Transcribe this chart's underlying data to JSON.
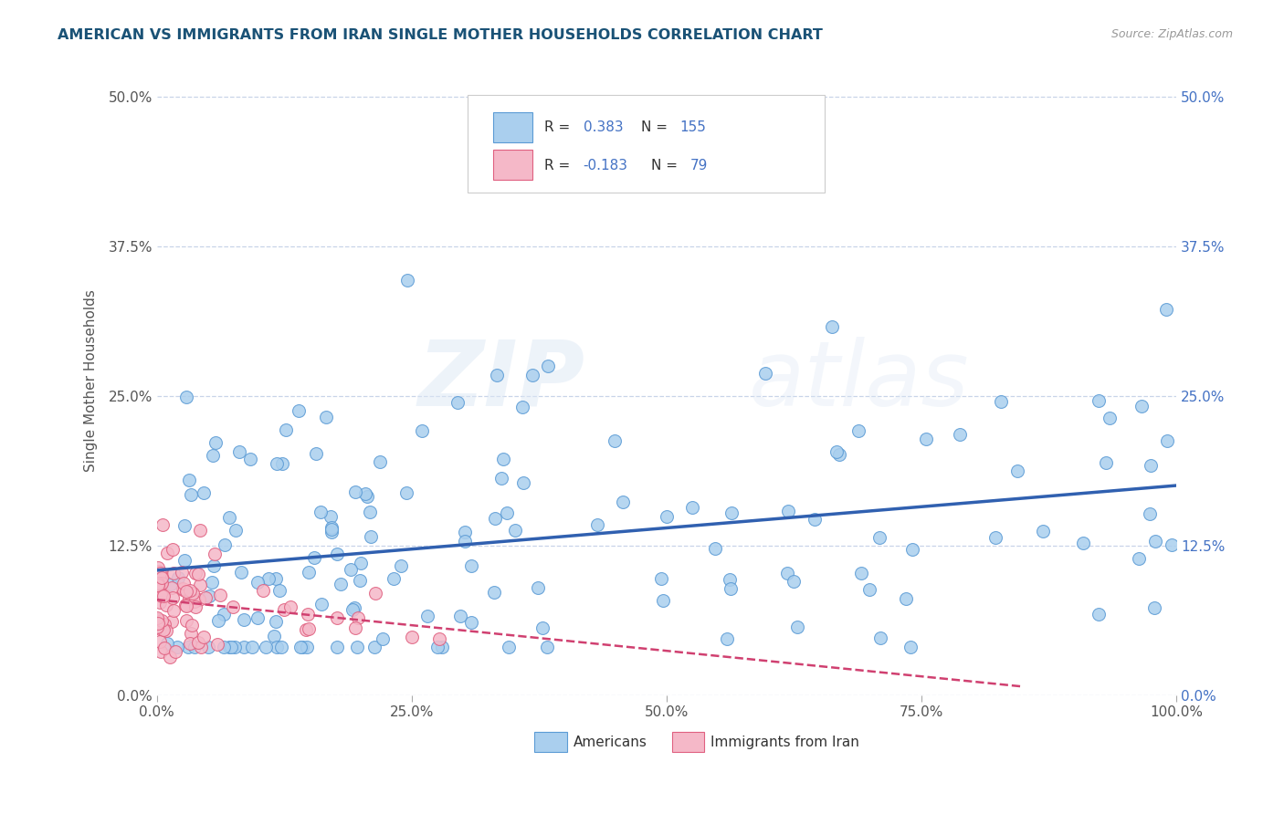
{
  "title": "AMERICAN VS IMMIGRANTS FROM IRAN SINGLE MOTHER HOUSEHOLDS CORRELATION CHART",
  "source": "Source: ZipAtlas.com",
  "ylabel": "Single Mother Households",
  "xlim": [
    0.0,
    1.0
  ],
  "ylim": [
    0.0,
    0.525
  ],
  "xticks": [
    0.0,
    0.25,
    0.5,
    0.75,
    1.0
  ],
  "xticklabels": [
    "0.0%",
    "25.0%",
    "50.0%",
    "75.0%",
    "100.0%"
  ],
  "yticks": [
    0.0,
    0.125,
    0.25,
    0.375,
    0.5
  ],
  "yticklabels": [
    "0.0%",
    "12.5%",
    "25.0%",
    "37.5%",
    "50.0%"
  ],
  "americans_color": "#aacfee",
  "americans_edge": "#5b9bd5",
  "iran_color": "#f5b8c8",
  "iran_edge": "#e06080",
  "trend_blue": "#3060b0",
  "trend_pink": "#d04070",
  "R_americans": 0.383,
  "N_americans": 155,
  "R_iran": -0.183,
  "N_iran": 79,
  "watermark_zip": "ZIP",
  "watermark_atlas": "atlas",
  "background_color": "#ffffff",
  "grid_color": "#c8d4e8",
  "title_color": "#1a5276",
  "axis_color": "#555555",
  "right_tick_color": "#4472c4",
  "legend_text_color_r": "#333333",
  "legend_text_color_val": "#4472c4",
  "legend_text_color_n": "#333333",
  "legend_text_color_nval": "#4472c4"
}
